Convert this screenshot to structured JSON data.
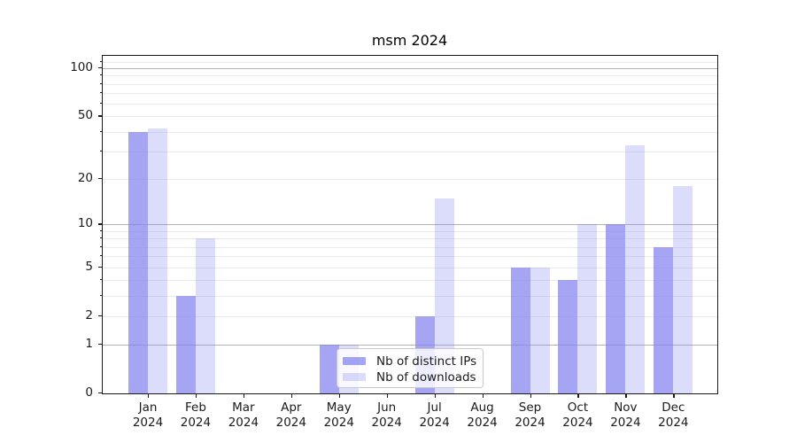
{
  "chart_data": {
    "type": "bar",
    "title": "msm 2024",
    "categories": [
      "Jan 2024",
      "Feb 2024",
      "Mar 2024",
      "Apr 2024",
      "May 2024",
      "Jun 2024",
      "Jul 2024",
      "Aug 2024",
      "Sep 2024",
      "Oct 2024",
      "Nov 2024",
      "Dec 2024"
    ],
    "x_months": [
      "Jan",
      "Feb",
      "Mar",
      "Apr",
      "May",
      "Jun",
      "Jul",
      "Aug",
      "Sep",
      "Oct",
      "Nov",
      "Dec"
    ],
    "x_year": "2024",
    "series": [
      {
        "name": "Nb of distinct IPs",
        "values": [
          40,
          3,
          0,
          0,
          1,
          0,
          2,
          0,
          5,
          4,
          10,
          7
        ]
      },
      {
        "name": "Nb of downloads",
        "values": [
          42,
          8,
          0,
          0,
          1,
          0,
          15,
          0,
          5,
          10,
          33,
          18
        ]
      }
    ],
    "y_scale": "log1p",
    "y_ticks": [
      0,
      1,
      2,
      5,
      10,
      20,
      50,
      100
    ],
    "y_major_gridlines": [
      1,
      10,
      100
    ],
    "y_minor_gridlines": [
      2,
      3,
      4,
      5,
      6,
      7,
      8,
      9,
      20,
      30,
      40,
      50,
      60,
      70,
      80,
      90,
      110
    ],
    "ylim": [
      0,
      121
    ],
    "grid": true,
    "legend_position": "lower center inside"
  },
  "colors": {
    "bar_distinct_ips": "rgba(130,130,240,0.72)",
    "bar_downloads": "rgba(130,130,240,0.28)",
    "grid_major": "#b2b2b2",
    "grid_minor": "#ebebeb",
    "axis": "#1a1a1a"
  }
}
